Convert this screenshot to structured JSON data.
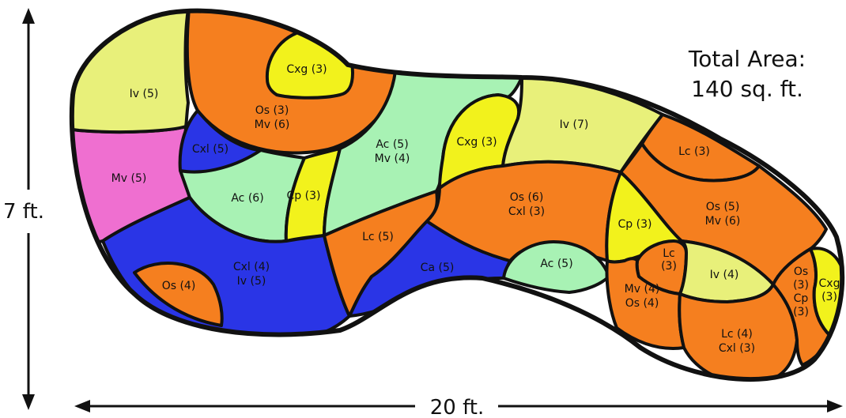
{
  "total_area": {
    "line1": "Total Area:",
    "line2": "140 sq. ft."
  },
  "dimensions": {
    "height": "7 ft.",
    "width": "20 ft."
  },
  "colors": {
    "yellow_green": "#e8f07a",
    "orange": "#f57f1f",
    "yellow": "#f2f21c",
    "blue": "#2a35e6",
    "pink": "#ef6fd0",
    "mint": "#a8f2b4",
    "outline": "#111111"
  },
  "regions": [
    {
      "id": "iv5",
      "color": "yellow_green",
      "lines": [
        "Iv (5)"
      ]
    },
    {
      "id": "os3mv6",
      "color": "orange",
      "lines": [
        "Os (3)",
        "Mv (6)"
      ]
    },
    {
      "id": "cxg3_top",
      "color": "yellow",
      "lines": [
        "Cxg (3)"
      ]
    },
    {
      "id": "mv5",
      "color": "pink",
      "lines": [
        "Mv (5)"
      ]
    },
    {
      "id": "cxl5",
      "color": "blue",
      "lines": [
        "Cxl (5)"
      ]
    },
    {
      "id": "ac6",
      "color": "mint",
      "lines": [
        "Ac (6)"
      ]
    },
    {
      "id": "cp3_left",
      "color": "yellow",
      "lines": [
        "Cp (3)"
      ]
    },
    {
      "id": "ac5mv4",
      "color": "mint",
      "lines": [
        "Ac (5)",
        "Mv (4)"
      ]
    },
    {
      "id": "cxg3_mid",
      "color": "yellow",
      "lines": [
        "Cxg (3)"
      ]
    },
    {
      "id": "iv7",
      "color": "yellow_green",
      "lines": [
        "Iv (7)"
      ]
    },
    {
      "id": "cxl4iv5",
      "color": "blue",
      "lines": [
        "Cxl (4)",
        "Iv (5)"
      ]
    },
    {
      "id": "os4",
      "color": "orange",
      "lines": [
        "Os (4)"
      ]
    },
    {
      "id": "lc5",
      "color": "orange",
      "lines": [
        "Lc (5)"
      ]
    },
    {
      "id": "ca5",
      "color": "blue",
      "lines": [
        "Ca (5)"
      ]
    },
    {
      "id": "os6cxl3",
      "color": "orange",
      "lines": [
        "Os (6)",
        "Cxl (3)"
      ]
    },
    {
      "id": "ac5",
      "color": "mint",
      "lines": [
        "Ac (5)"
      ]
    },
    {
      "id": "lc3_top",
      "color": "orange",
      "lines": [
        "Lc (3)"
      ]
    },
    {
      "id": "os5mv6",
      "color": "orange",
      "lines": [
        "Os (5)",
        "Mv (6)"
      ]
    },
    {
      "id": "cp3_right",
      "color": "yellow",
      "lines": [
        "Cp (3)"
      ]
    },
    {
      "id": "lc3_small",
      "color": "orange",
      "lines": [
        "Lc",
        "(3)"
      ]
    },
    {
      "id": "iv4",
      "color": "yellow_green",
      "lines": [
        "Iv (4)"
      ]
    },
    {
      "id": "mv4os4",
      "color": "orange",
      "lines": [
        "Mv (4)",
        "Os (4)"
      ]
    },
    {
      "id": "lc4cxl3",
      "color": "orange",
      "lines": [
        "Lc (4)",
        "Cxl (3)"
      ]
    },
    {
      "id": "os3cp3",
      "color": "orange",
      "lines": [
        "Os",
        "(3)",
        "Cp",
        "(3)"
      ]
    },
    {
      "id": "cxg3_right",
      "color": "yellow",
      "lines": [
        "Cxg",
        "(3)"
      ]
    }
  ]
}
